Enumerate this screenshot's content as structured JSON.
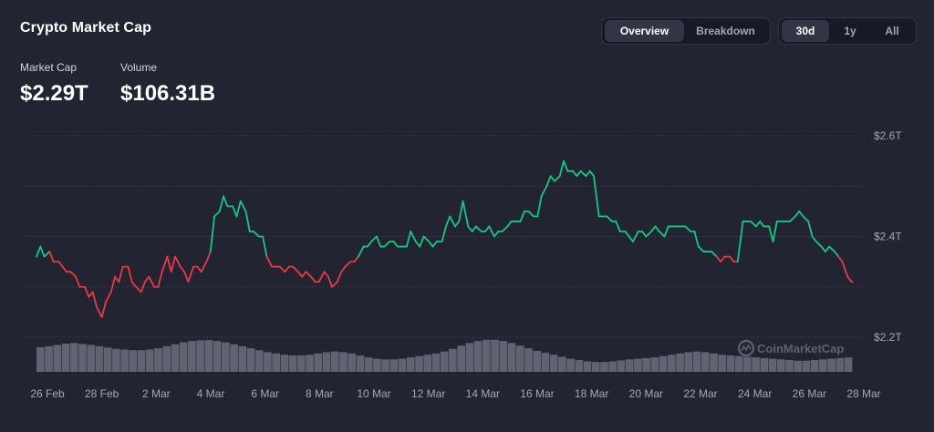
{
  "header": {
    "title": "Crypto Market Cap"
  },
  "stats": {
    "market_cap_label": "Market Cap",
    "market_cap_value": "$2.29T",
    "volume_label": "Volume",
    "volume_value": "$106.31B"
  },
  "view_toggle": {
    "options": [
      "Overview",
      "Breakdown"
    ],
    "selected": "Overview"
  },
  "range_toggle": {
    "options": [
      "30d",
      "1y",
      "All"
    ],
    "selected": "30d"
  },
  "watermark": "CoinMarketCap",
  "colors": {
    "up": "#16c784",
    "down": "#ea3943",
    "volume": "#6b6f7e"
  },
  "chart_data": {
    "type": "line",
    "y_unit": "Market Cap (trillions USD)",
    "ylim": [
      2.16,
      2.62
    ],
    "y_ticks": [
      2.2,
      2.4,
      2.6
    ],
    "y_tick_labels": [
      "$2.2T",
      "$2.4T",
      "$2.6T"
    ],
    "x_tick_labels": [
      "26 Feb",
      "28 Feb",
      "2 Mar",
      "4 Mar",
      "6 Mar",
      "8 Mar",
      "10 Mar",
      "12 Mar",
      "14 Mar",
      "16 Mar",
      "18 Mar",
      "20 Mar",
      "22 Mar",
      "24 Mar",
      "26 Mar",
      "28 Mar"
    ],
    "grid": true,
    "baseline": 2.31,
    "series": [
      {
        "x": [
          26.0,
          26.3,
          26.6,
          27.0,
          27.3,
          27.7,
          28.0,
          28.3,
          28.6,
          29.0,
          29.3,
          29.7,
          30.0,
          30.3,
          30.6,
          31.0,
          31.3,
          31.7,
          32.0,
          32.3,
          32.6,
          33.0,
          33.3,
          33.6,
          34.0,
          34.3,
          34.6,
          35.0,
          35.3,
          35.6,
          36.0,
          36.3,
          36.6,
          37.0,
          37.3,
          37.6,
          38.0,
          38.3,
          38.6,
          39.0,
          39.3,
          39.6,
          40.0,
          40.3,
          40.6,
          41.0,
          41.3,
          41.6,
          42.0,
          42.3,
          42.6,
          43.0,
          43.3,
          43.6,
          44.0,
          44.3,
          44.6,
          45.0,
          45.3,
          45.6,
          46.0,
          46.3,
          46.6,
          47.0,
          47.3,
          47.6,
          48.0,
          48.3,
          48.6,
          49.0,
          49.3,
          49.6,
          50.0,
          50.3,
          50.6,
          51.0,
          51.3,
          51.6,
          52.0,
          52.3,
          52.6,
          53.0,
          53.3,
          53.6,
          54.0,
          54.3,
          54.6,
          55.0,
          55.3,
          55.6,
          56.0,
          56.3,
          56.6,
          57.0,
          57.3,
          57.6,
          58.0,
          58.3,
          58.6,
          59.0,
          59.3,
          59.6,
          60.0,
          60.3,
          60.6,
          61.0,
          61.3,
          61.6,
          62.0,
          62.3,
          62.6,
          63.0,
          63.3,
          63.6,
          64.0,
          64.3,
          64.6,
          65.0,
          65.3,
          65.6,
          66.0,
          66.3,
          66.6,
          67.0,
          67.3,
          67.6,
          68.0,
          68.3,
          68.6,
          69.0,
          69.3,
          69.6,
          70.0,
          70.3,
          70.6,
          71.0,
          71.3,
          71.6,
          72.0,
          72.3,
          72.6,
          73.0,
          73.3,
          73.6,
          74.0,
          74.3,
          74.6,
          75.0,
          75.3,
          75.6,
          76.0,
          76.3,
          76.6,
          77.0,
          77.3,
          77.6,
          78.0,
          78.3,
          78.6,
          79.0,
          79.3,
          79.6,
          80.0,
          80.3,
          80.6,
          81.0,
          81.3,
          81.6,
          82.0,
          82.3,
          82.6,
          83.0,
          83.3,
          83.6,
          84.0,
          84.3,
          84.6,
          85.0,
          85.3,
          85.6,
          86.0,
          86.3,
          86.6,
          87.0,
          87.3,
          87.6,
          88.0,
          88.3,
          88.4
        ],
        "y": [
          2.36,
          2.38,
          2.36,
          2.37,
          2.35,
          2.35,
          2.34,
          2.33,
          2.33,
          2.32,
          2.3,
          2.3,
          2.28,
          2.29,
          2.26,
          2.24,
          2.27,
          2.29,
          2.32,
          2.31,
          2.34,
          2.34,
          2.31,
          2.3,
          2.29,
          2.31,
          2.32,
          2.3,
          2.3,
          2.33,
          2.36,
          2.33,
          2.36,
          2.34,
          2.33,
          2.31,
          2.34,
          2.34,
          2.33,
          2.35,
          2.37,
          2.44,
          2.45,
          2.48,
          2.46,
          2.46,
          2.44,
          2.47,
          2.45,
          2.41,
          2.41,
          2.4,
          2.4,
          2.36,
          2.34,
          2.34,
          2.34,
          2.33,
          2.34,
          2.34,
          2.33,
          2.32,
          2.33,
          2.32,
          2.31,
          2.31,
          2.33,
          2.32,
          2.3,
          2.31,
          2.33,
          2.34,
          2.35,
          2.35,
          2.36,
          2.38,
          2.38,
          2.39,
          2.4,
          2.38,
          2.38,
          2.39,
          2.39,
          2.38,
          2.38,
          2.38,
          2.41,
          2.39,
          2.38,
          2.4,
          2.39,
          2.38,
          2.39,
          2.39,
          2.42,
          2.44,
          2.42,
          2.43,
          2.47,
          2.42,
          2.41,
          2.42,
          2.41,
          2.41,
          2.42,
          2.4,
          2.41,
          2.41,
          2.42,
          2.43,
          2.43,
          2.43,
          2.45,
          2.45,
          2.44,
          2.44,
          2.48,
          2.5,
          2.52,
          2.51,
          2.52,
          2.55,
          2.53,
          2.53,
          2.52,
          2.53,
          2.52,
          2.53,
          2.52,
          2.44,
          2.44,
          2.44,
          2.43,
          2.43,
          2.41,
          2.41,
          2.4,
          2.39,
          2.41,
          2.41,
          2.4,
          2.41,
          2.42,
          2.41,
          2.4,
          2.42,
          2.42,
          2.42,
          2.42,
          2.42,
          2.41,
          2.41,
          2.38,
          2.37,
          2.37,
          2.37,
          2.36,
          2.35,
          2.36,
          2.36,
          2.35,
          2.35,
          2.43,
          2.43,
          2.43,
          2.42,
          2.43,
          2.42,
          2.42,
          2.39,
          2.43,
          2.43,
          2.43,
          2.43,
          2.44,
          2.45,
          2.44,
          2.43,
          2.4,
          2.39,
          2.38,
          2.37,
          2.38,
          2.37,
          2.36,
          2.35,
          2.32,
          2.31,
          2.31
        ]
      }
    ],
    "volume": {
      "description": "trading volume bars (unlabeled scale)",
      "relative_values": [
        0.75,
        0.78,
        0.82,
        0.86,
        0.88,
        0.85,
        0.82,
        0.78,
        0.74,
        0.7,
        0.68,
        0.66,
        0.66,
        0.68,
        0.72,
        0.78,
        0.84,
        0.9,
        0.94,
        0.96,
        0.97,
        0.94,
        0.9,
        0.84,
        0.78,
        0.72,
        0.66,
        0.6,
        0.56,
        0.52,
        0.5,
        0.5,
        0.52,
        0.56,
        0.6,
        0.62,
        0.6,
        0.56,
        0.5,
        0.44,
        0.4,
        0.38,
        0.38,
        0.4,
        0.44,
        0.48,
        0.52,
        0.56,
        0.62,
        0.7,
        0.8,
        0.88,
        0.94,
        0.98,
        0.98,
        0.94,
        0.88,
        0.8,
        0.72,
        0.64,
        0.58,
        0.52,
        0.46,
        0.4,
        0.36,
        0.32,
        0.3,
        0.3,
        0.32,
        0.35,
        0.38,
        0.4,
        0.42,
        0.44,
        0.48,
        0.52,
        0.56,
        0.6,
        0.62,
        0.6,
        0.56,
        0.52,
        0.5,
        0.48,
        0.46,
        0.44,
        0.42,
        0.4,
        0.38,
        0.36,
        0.34,
        0.34,
        0.36,
        0.38,
        0.4,
        0.42,
        0.44
      ]
    }
  }
}
